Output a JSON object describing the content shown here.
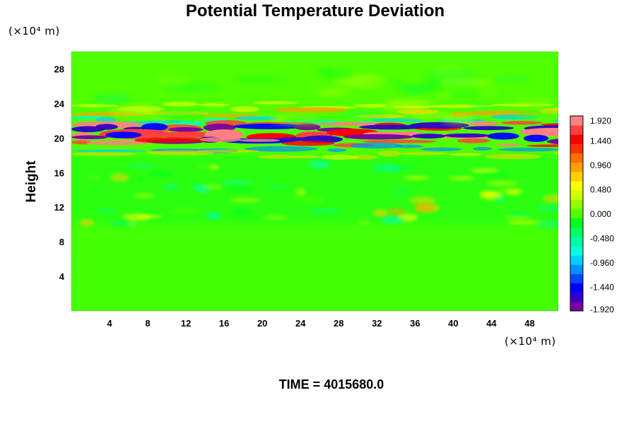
{
  "chart_data": {
    "type": "heatmap",
    "title": "Potential Temperature Deviation",
    "ylabel": "Height",
    "xunit": "(×10⁴ m)",
    "yunit": "(×10⁴ m)",
    "xlim": [
      0,
      51
    ],
    "ylim": [
      0,
      30
    ],
    "x_ticks": [
      "4",
      "8",
      "12",
      "16",
      "20",
      "24",
      "28",
      "32",
      "36",
      "40",
      "44",
      "48"
    ],
    "y_ticks": [
      "4",
      "8",
      "12",
      "16",
      "20",
      "24",
      "28"
    ],
    "colorbar": {
      "ticks": [
        "1.920",
        "1.440",
        "0.960",
        "0.480",
        "0.000",
        "-0.480",
        "-0.960",
        "-1.440",
        "-1.920"
      ],
      "range": [
        -1.92,
        1.92
      ],
      "colors": [
        "#7a00a0",
        "#3000c8",
        "#0000ff",
        "#0048ff",
        "#0090ff",
        "#00d0ff",
        "#00ffe0",
        "#00ffa0",
        "#00ff60",
        "#00ff20",
        "#50ff00",
        "#90ff00",
        "#d0ff00",
        "#ffff00",
        "#ffd000",
        "#ffa000",
        "#ff7000",
        "#ff3000",
        "#ff0000",
        "#ff4040",
        "#ff8080"
      ]
    },
    "field_description_values": {
      "background_value": 0.0,
      "lower_layer_range": [
        0,
        10
      ],
      "lower_layer_value": 0.05,
      "mid_layer_range": [
        10,
        18
      ],
      "mid_layer_value": -0.25,
      "band_center": 20.5,
      "band_amplitude": 1.92
    }
  },
  "footer": {
    "time_label": "TIME = 4015680.0"
  }
}
